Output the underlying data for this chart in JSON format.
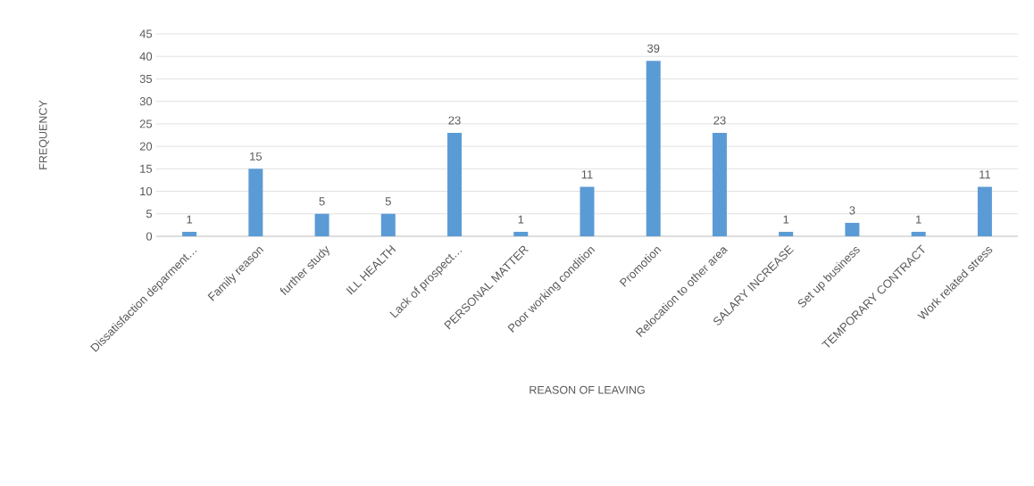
{
  "chart_data": {
    "type": "bar",
    "xlabel": "REASON OF LEAVING",
    "ylabel": "FREQUENCY",
    "categories": [
      "Dissatisfaction deparment…",
      "Family reason",
      "further study",
      "ILL HEALTH",
      "Lack of prospect…",
      "PERSONAL MATTER",
      "Poor working condition",
      "Promotion",
      "Relocation to other area",
      "SALARY INCREASE",
      "Set up business",
      "TEMPORARY CONTRACT",
      "Work related stress"
    ],
    "values": [
      1,
      15,
      5,
      5,
      23,
      1,
      11,
      39,
      23,
      1,
      3,
      1,
      11
    ],
    "color": "#5b9bd5",
    "ylim": [
      0,
      45
    ],
    "yticks": [
      0,
      5,
      10,
      15,
      20,
      25,
      30,
      35,
      40,
      45
    ],
    "grid": "y",
    "data_labels": true
  }
}
